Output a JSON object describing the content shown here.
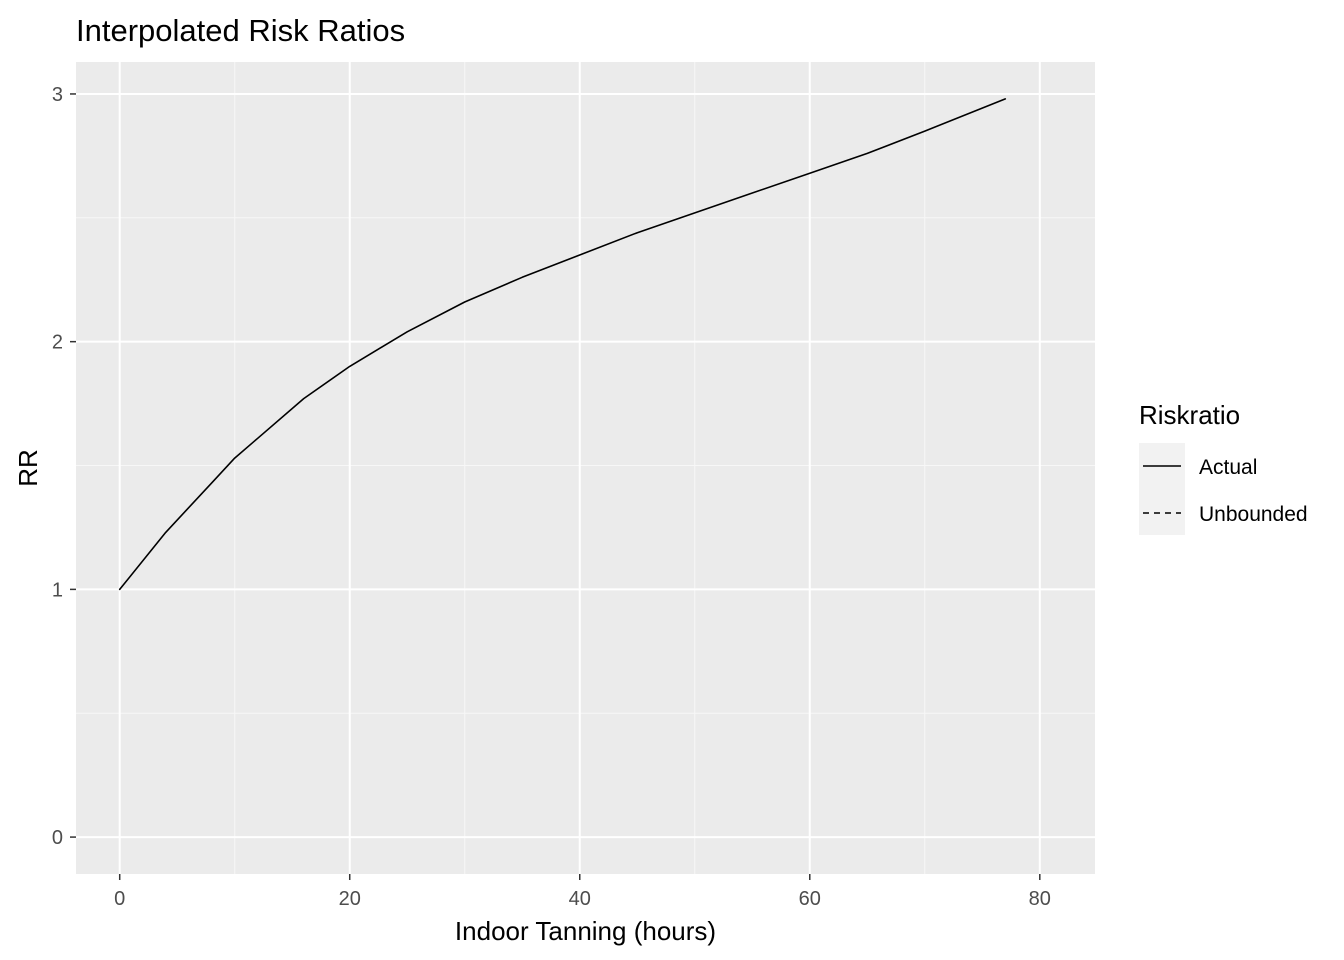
{
  "chart_data": {
    "type": "line",
    "title": "Interpolated Risk Ratios",
    "xlabel": "Indoor Tanning (hours)",
    "ylabel": "RR",
    "xlim": [
      -3.8,
      84.8
    ],
    "ylim": [
      -0.149,
      3.129
    ],
    "x_ticks": [
      0,
      20,
      40,
      60,
      80
    ],
    "y_ticks": [
      0,
      1,
      2,
      3
    ],
    "x_tick_labels": [
      "0",
      "20",
      "40",
      "60",
      "80"
    ],
    "y_tick_labels": [
      "0",
      "1",
      "2",
      "3"
    ],
    "grid": true,
    "background": "#ebebeb",
    "legend": {
      "title": "Riskratio",
      "position": "right",
      "entries": [
        {
          "label": "Actual",
          "linetype": "solid"
        },
        {
          "label": "Unbounded",
          "linetype": "dashed"
        }
      ]
    },
    "series": [
      {
        "name": "Actual",
        "linetype": "solid",
        "color": "#000000",
        "x": [
          0,
          4,
          8,
          10,
          12,
          16,
          20,
          25,
          30,
          35,
          40,
          45,
          50,
          55,
          60,
          65,
          70,
          77
        ],
        "y": [
          1.0,
          1.23,
          1.43,
          1.53,
          1.61,
          1.77,
          1.9,
          2.04,
          2.16,
          2.26,
          2.35,
          2.44,
          2.52,
          2.6,
          2.68,
          2.76,
          2.85,
          2.98
        ]
      }
    ]
  }
}
